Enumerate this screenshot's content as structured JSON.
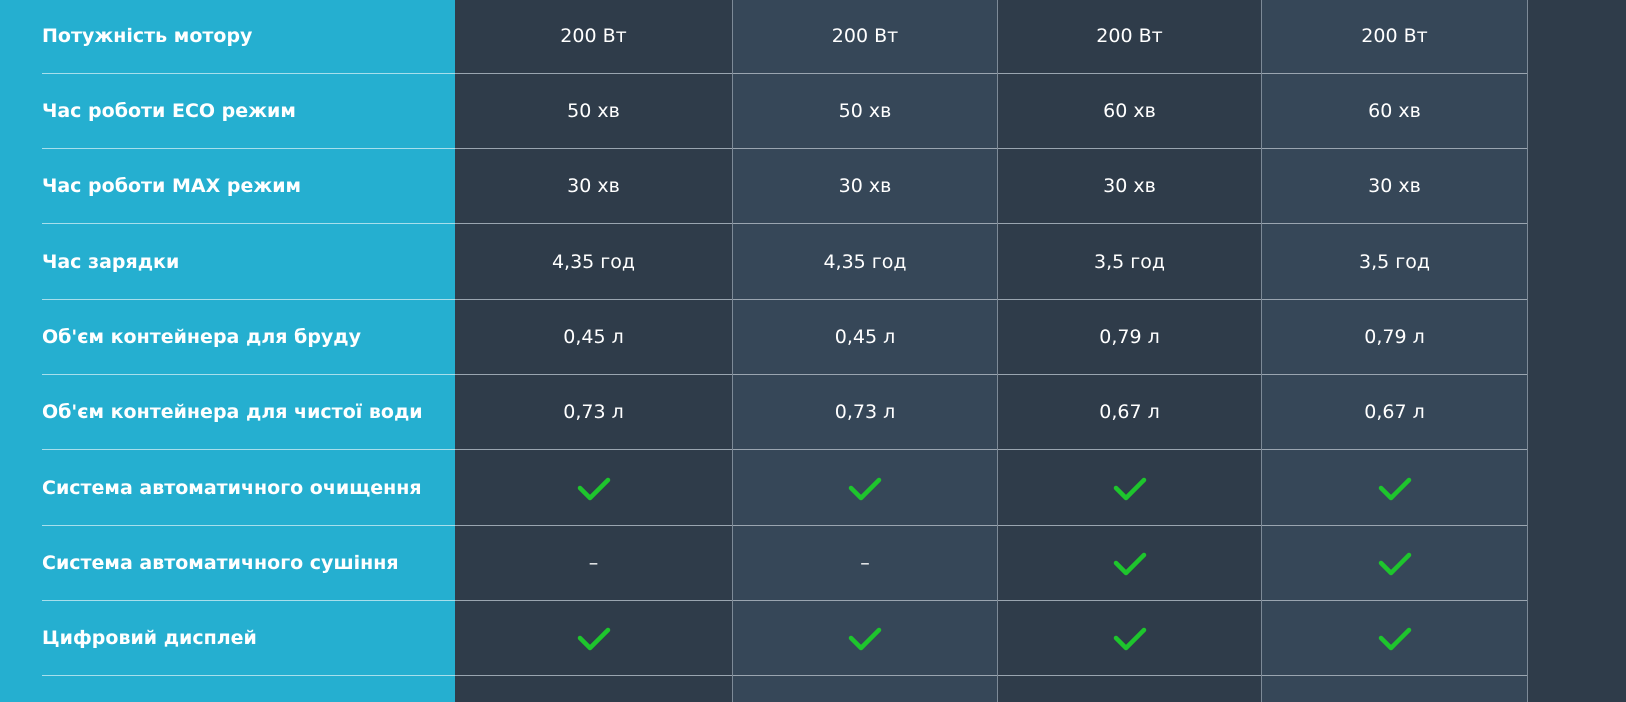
{
  "rows": [
    {
      "label": "Потужність мотору",
      "values": [
        "200 Вт",
        "200 Вт",
        "200 Вт",
        "200 Вт"
      ]
    },
    {
      "label": "Час роботи ECO режим",
      "values": [
        "50 хв",
        "50 хв",
        "60 хв",
        "60 хв"
      ]
    },
    {
      "label": "Час роботи MAX режим",
      "values": [
        "30 хв",
        "30 хв",
        "30 хв",
        "30 хв"
      ]
    },
    {
      "label": "Час зарядки",
      "values": [
        "4,35 год",
        "4,35 год",
        "3,5 год",
        "3,5 год"
      ]
    },
    {
      "label": "Об'єм контейнера для бруду",
      "values": [
        "0,45 л",
        "0,45 л",
        "0,79 л",
        "0,79 л"
      ]
    },
    {
      "label": "Об'єм контейнера для чистої води",
      "values": [
        "0,73 л",
        "0,73 л",
        "0,67 л",
        "0,67 л"
      ]
    },
    {
      "label": "Система автоматичного очищення",
      "values": [
        "check",
        "check",
        "check",
        "check"
      ]
    },
    {
      "label": "Система автоматичного сушіння",
      "values": [
        "–",
        "–",
        "check",
        "check"
      ]
    },
    {
      "label": "Цифровий дисплей",
      "values": [
        "check",
        "check",
        "check",
        "check"
      ]
    }
  ],
  "colors": {
    "label_bg": "#25afd0",
    "check": "#1ec52d",
    "dark": "#2f3c4a",
    "light": "#364758"
  }
}
